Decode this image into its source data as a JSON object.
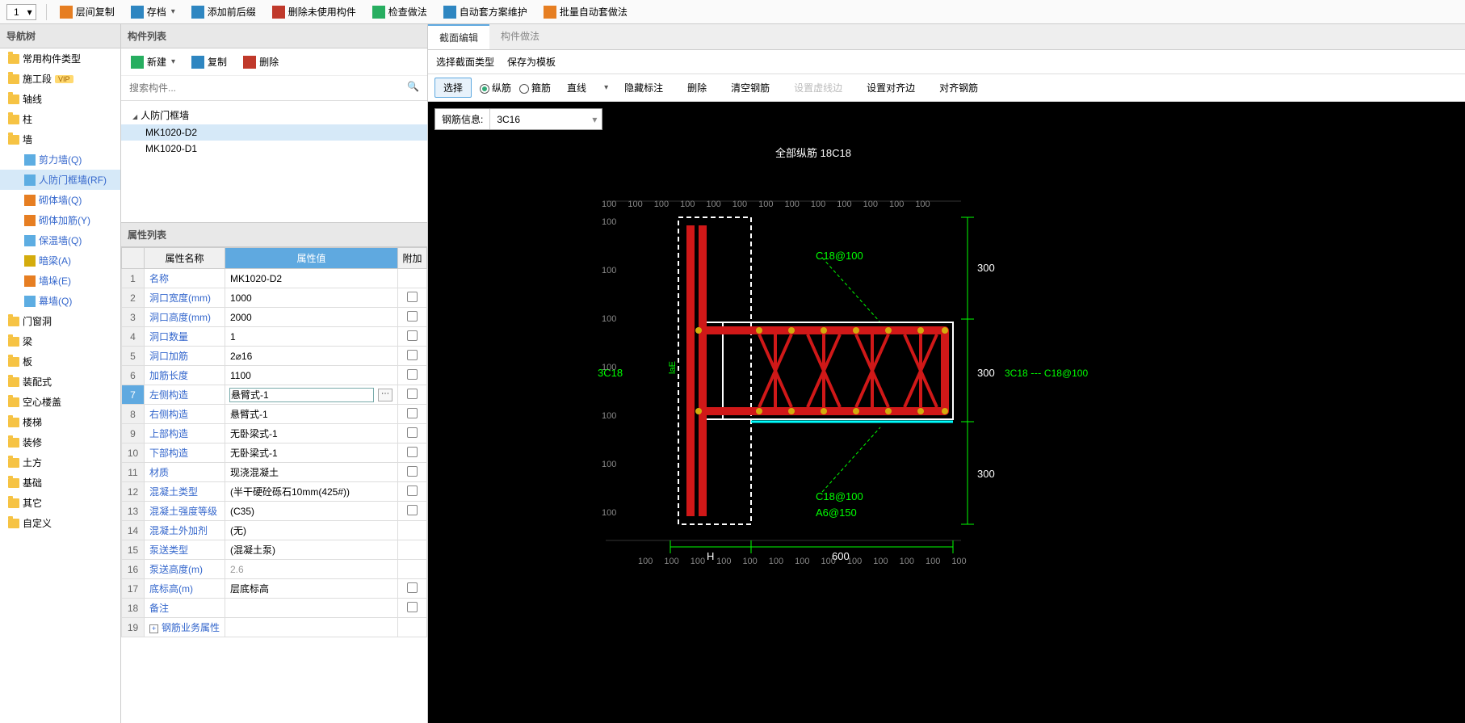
{
  "topDropdown": "1",
  "topToolbar": [
    {
      "icon": "#e67e22",
      "label": "层间复制"
    },
    {
      "icon": "#2e86c1",
      "label": "存档",
      "caret": true
    },
    {
      "icon": "#2e86c1",
      "label": "添加前后缀"
    },
    {
      "icon": "#c0392b",
      "label": "删除未使用构件"
    },
    {
      "icon": "#27ae60",
      "label": "检查做法"
    },
    {
      "icon": "#2e86c1",
      "label": "自动套方案维护"
    },
    {
      "icon": "#e67e22",
      "label": "批量自动套做法"
    }
  ],
  "navTitle": "导航树",
  "nav": [
    {
      "label": "常用构件类型",
      "type": "folder"
    },
    {
      "label": "施工段",
      "type": "folder",
      "badge": "VIP"
    },
    {
      "label": "轴线",
      "type": "folder"
    },
    {
      "label": "柱",
      "type": "folder"
    },
    {
      "label": "墙",
      "type": "folder",
      "children": [
        {
          "label": "剪力墙(Q)",
          "icon": "wall",
          "color": "#5dade2"
        },
        {
          "label": "人防门框墙(RF)",
          "icon": "wall",
          "color": "#5dade2",
          "selected": true
        },
        {
          "label": "砌体墙(Q)",
          "icon": "brick",
          "color": "#e67e22"
        },
        {
          "label": "砌体加筋(Y)",
          "icon": "rebar",
          "color": "#e67e22"
        },
        {
          "label": "保温墙(Q)",
          "icon": "insul",
          "color": "#5dade2"
        },
        {
          "label": "暗梁(A)",
          "icon": "beam",
          "color": "#d4ac0d"
        },
        {
          "label": "墙垛(E)",
          "icon": "pier",
          "color": "#e67e22"
        },
        {
          "label": "幕墙(Q)",
          "icon": "curtain",
          "color": "#5dade2"
        }
      ]
    },
    {
      "label": "门窗洞",
      "type": "folder"
    },
    {
      "label": "梁",
      "type": "folder"
    },
    {
      "label": "板",
      "type": "folder"
    },
    {
      "label": "装配式",
      "type": "folder"
    },
    {
      "label": "空心楼盖",
      "type": "folder"
    },
    {
      "label": "楼梯",
      "type": "folder"
    },
    {
      "label": "装修",
      "type": "folder"
    },
    {
      "label": "土方",
      "type": "folder"
    },
    {
      "label": "基础",
      "type": "folder"
    },
    {
      "label": "其它",
      "type": "folder"
    },
    {
      "label": "自定义",
      "type": "folder"
    }
  ],
  "compListTitle": "构件列表",
  "compToolbar": {
    "new": "新建",
    "copy": "复制",
    "delete": "删除"
  },
  "searchPlaceholder": "搜索构件...",
  "compTree": {
    "root": "人防门框墙",
    "items": [
      "MK1020-D2",
      "MK1020-D1"
    ],
    "selected": 0
  },
  "propTitle": "属性列表",
  "propHeaders": {
    "name": "属性名称",
    "value": "属性值",
    "extra": "附加"
  },
  "props": [
    {
      "n": "名称",
      "v": "MK1020-D2"
    },
    {
      "n": "洞口宽度(mm)",
      "v": "1000",
      "chk": true
    },
    {
      "n": "洞口高度(mm)",
      "v": "2000",
      "chk": true
    },
    {
      "n": "洞口数量",
      "v": "1",
      "chk": true
    },
    {
      "n": "洞口加筋",
      "v": "2⌀16",
      "chk": true
    },
    {
      "n": "加筋长度",
      "v": "1100",
      "chk": true
    },
    {
      "n": "左侧构造",
      "v": "悬臂式-1",
      "chk": true,
      "sel": true,
      "btn": true
    },
    {
      "n": "右侧构造",
      "v": "悬臂式-1",
      "chk": true
    },
    {
      "n": "上部构造",
      "v": "无卧梁式-1",
      "chk": true
    },
    {
      "n": "下部构造",
      "v": "无卧梁式-1",
      "chk": true
    },
    {
      "n": "材质",
      "v": "现浇混凝土",
      "chk": true
    },
    {
      "n": "混凝土类型",
      "v": "(半干硬砼砾石10mm(425#))",
      "chk": true
    },
    {
      "n": "混凝土强度等级",
      "v": "(C35)",
      "chk": true
    },
    {
      "n": "混凝土外加剂",
      "v": "(无)"
    },
    {
      "n": "泵送类型",
      "v": "(混凝土泵)"
    },
    {
      "n": "泵送高度(m)",
      "v": "2.6",
      "gray": true
    },
    {
      "n": "底标高(m)",
      "v": "层底标高",
      "chk": true
    },
    {
      "n": "备注",
      "v": "",
      "chk": true
    },
    {
      "n": "钢筋业务属性",
      "v": "",
      "expand": true
    }
  ],
  "tabs": [
    "截面编辑",
    "构件做法"
  ],
  "activeTab": 0,
  "subBar": [
    "选择截面类型",
    "保存为模板"
  ],
  "toolRow": {
    "select": "选择",
    "radios": [
      {
        "label": "纵筋",
        "on": true
      },
      {
        "label": "箍筋",
        "on": false
      }
    ],
    "cmds": [
      "直线",
      "隐藏标注",
      "删除",
      "清空钢筋"
    ],
    "disabled": "设置虚线边",
    "cmds2": [
      "设置对齐边",
      "对齐钢筋"
    ]
  },
  "rebarInfo": {
    "label": "钢筋信息:",
    "value": "3C16"
  },
  "canvas": {
    "title": "全部纵筋 18C18",
    "dims": {
      "d300a": "300",
      "d300b": "300",
      "d300c": "300",
      "d600": "600",
      "H": "H"
    },
    "labels": {
      "c18_100a": "C18@100",
      "c18_100b": "C18@100",
      "a6_150": "A6@150",
      "l3c18": "3C18",
      "r3c18": "3C18",
      "rc18": "C18@100",
      "laE": "laE"
    },
    "ticks": [
      "100",
      "100",
      "100",
      "100",
      "100",
      "100",
      "100",
      "100",
      "100",
      "100",
      "100",
      "100",
      "100"
    ],
    "colors": {
      "bg": "#000000",
      "rebar": "#d01818",
      "outline": "#ffffff",
      "dim": "#00ff00",
      "grid": "#333333",
      "node": "#d4ac0d",
      "cyan": "#00ffff"
    }
  }
}
